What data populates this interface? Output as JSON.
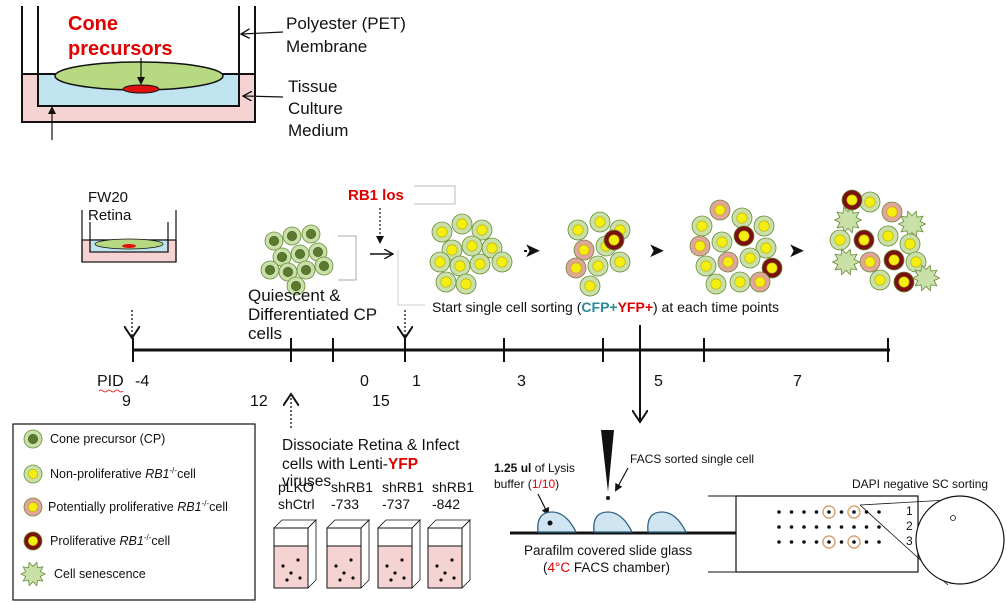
{
  "insert_diagram": {
    "cell_label_line1": "Cone",
    "cell_label_line2": "precursors",
    "membrane_line1": "Polyester (PET)",
    "membrane_line2": "Membrane",
    "medium_line1": "Tissue",
    "medium_line2": "Culture",
    "medium_line3": "Medium"
  },
  "retina": {
    "line1": "FW20",
    "line2": "Retina"
  },
  "quiescent": {
    "line1": "Quiescent &",
    "line2": "Differentiated CP",
    "line3": "cells"
  },
  "rb1_loss": "RB1 los",
  "sorting_label_prefix": "Start single cell sorting (",
  "sorting_label_cfp": "CFP+",
  "sorting_label_yfp": "YFP+",
  "sorting_label_suffix": ") at each time points",
  "timeline": {
    "pid_label": "PID",
    "ticks_top": [
      "-4",
      "0",
      "1",
      "3",
      "5",
      "7"
    ],
    "ticks_bottom": [
      "9",
      "12",
      "15"
    ]
  },
  "legend": [
    {
      "label": "Cone precursor (CP)",
      "icon": "cone-precursor-cell"
    },
    {
      "label": "Non-proliferative RB1-/- cell",
      "prefix": "Non-proliferative ",
      "gene": "RB1",
      "sup": "-/-",
      "suffix": "cell",
      "icon": "yellow-nucleus-cell"
    },
    {
      "label": "Potentially proliferative RB1-/- cell",
      "prefix": "Potentially proliferative ",
      "gene": "RB1",
      "sup": "-/-",
      "suffix": "cell",
      "icon": "pink-cell"
    },
    {
      "label": "Proliferative RB1-/- cell",
      "prefix": "Proliferative ",
      "gene": "RB1",
      "sup": "-/-",
      "suffix": "cell",
      "icon": "dark-red-cell"
    },
    {
      "label": "Cell senescence",
      "icon": "senescent-cell"
    }
  ],
  "infection": {
    "line1": "Dissociate Retina & Infect",
    "line2_prefix": "cells with Lenti-",
    "line2_yfp": "YFP",
    "line3": "viruses",
    "tubes": [
      {
        "line1": "pLKO",
        "line2": "shCtrl"
      },
      {
        "line1": "shRB1",
        "line2": "-733"
      },
      {
        "line1": "shRB1",
        "line2": "-737"
      },
      {
        "line1": "shRB1",
        "line2": "-842"
      }
    ]
  },
  "facs": {
    "lysis_amount": "1.25 ul",
    "lysis_text": " of Lysis",
    "buffer_text": "buffer (",
    "dilution": "1/10",
    "buffer_close": ")",
    "sorted_label": "FACS sorted single cell",
    "slide_line1": "Parafilm covered slide glass",
    "chamber_prefix": "(",
    "chamber_temp": "4°C",
    "chamber_suffix": " FACS chamber)",
    "dapi_label": "DAPI negative SC sorting",
    "row_labels": [
      "1",
      "2",
      "3"
    ]
  },
  "colors": {
    "red": "#e00000",
    "teal": "#2a8c99",
    "cell_green": "#c9e1a8",
    "cell_dark_green": "#5b7a2f",
    "yellow": "#f4ee10",
    "pink": "#e2a59b",
    "dark_red": "#7a1010",
    "medium_blue": "#bfe4ef",
    "tube_pink": "#f6d3d3"
  }
}
